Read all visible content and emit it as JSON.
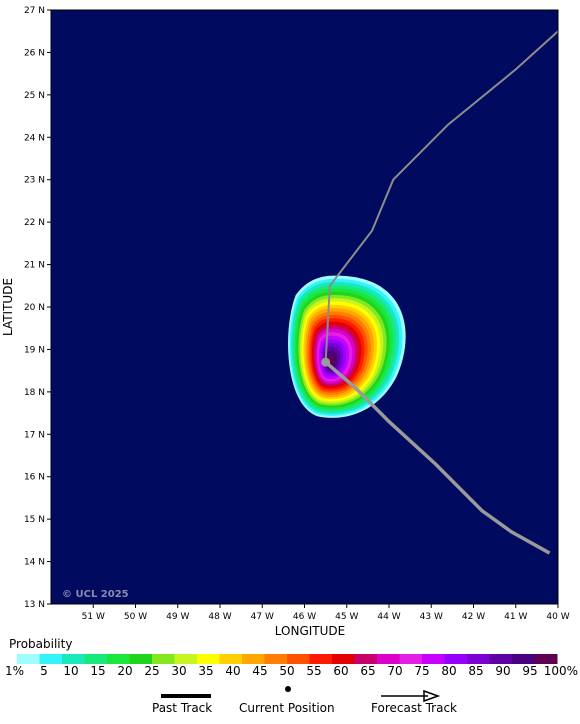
{
  "map": {
    "background_color": "#000a5f",
    "x_axis_label": "LONGITUDE",
    "y_axis_label": "LATITUDE",
    "copyright": "© UCL 2025",
    "lon_ticks": [
      "51 W",
      "50 W",
      "49 W",
      "48 W",
      "47 W",
      "46 W",
      "45 W",
      "44 W",
      "43 W",
      "42 W",
      "41 W",
      "40 W"
    ],
    "lat_ticks": [
      "27 N",
      "26 N",
      "25 N",
      "24 N",
      "23 N",
      "22 N",
      "21 N",
      "20 N",
      "19 N",
      "18 N",
      "17 N",
      "16 N",
      "15 N",
      "14 N",
      "13 N"
    ],
    "current_position": {
      "lon": 45.5,
      "lat": 18.7
    },
    "past_track": [
      [
        45.5,
        18.7
      ],
      [
        45.5,
        18.7
      ]
    ],
    "forecast_track_near": [
      [
        45.5,
        18.7
      ],
      [
        44.8,
        18.1
      ],
      [
        44.0,
        17.3
      ],
      [
        42.9,
        16.3
      ],
      [
        41.8,
        15.2
      ],
      [
        41.1,
        14.7
      ],
      [
        40.2,
        14.2
      ]
    ],
    "forecast_track_far": [
      [
        45.5,
        18.7
      ],
      [
        45.4,
        20.5
      ],
      [
        44.4,
        21.8
      ],
      [
        43.9,
        23.0
      ],
      [
        42.6,
        24.3
      ],
      [
        41.0,
        25.6
      ],
      [
        40.0,
        26.5
      ]
    ]
  },
  "legend": {
    "title": "Probability",
    "colors": [
      "#9ffcff",
      "#33f3ff",
      "#19e8bc",
      "#19e87a",
      "#19e83a",
      "#1fd41f",
      "#84e81f",
      "#c6f51f",
      "#ffff00",
      "#ffcf00",
      "#ffa600",
      "#ff7d00",
      "#ff5100",
      "#ff1a00",
      "#e30000",
      "#c8006c",
      "#dc00c8",
      "#e41ee4",
      "#c800ff",
      "#9600ff",
      "#7d00d2",
      "#5f00a5",
      "#4a0082",
      "#5f0050"
    ],
    "labels": [
      "1%",
      "5",
      "10",
      "15",
      "20",
      "25",
      "30",
      "35",
      "40",
      "45",
      "50",
      "55",
      "60",
      "65",
      "70",
      "75",
      "80",
      "85",
      "90",
      "95",
      "100%"
    ]
  },
  "key": {
    "past_track": "Past Track",
    "current_position": "Current Position",
    "forecast_track": "Forecast Track"
  }
}
